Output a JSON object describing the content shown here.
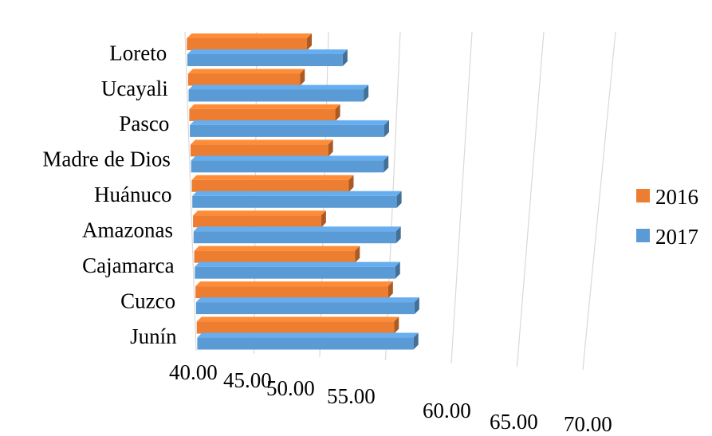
{
  "chart_data": {
    "type": "bar",
    "orientation": "horizontal",
    "style": "3d",
    "categories": [
      "Loreto",
      "Ucayali",
      "Pasco",
      "Madre de Dios",
      "Huánuco",
      "Amazonas",
      "Cajamarca",
      "Cuzco",
      "Junín"
    ],
    "series": [
      {
        "name": "2016",
        "color": "#ED7D31",
        "values": [
          48.5,
          48.0,
          50.5,
          50.0,
          51.5,
          49.5,
          52.0,
          54.5,
          55.0
        ]
      },
      {
        "name": "2017",
        "color": "#5B9BD5",
        "values": [
          51.0,
          52.5,
          54.0,
          54.0,
          55.0,
          55.0,
          55.0,
          56.5,
          56.5
        ]
      }
    ],
    "xlim": [
      40,
      70
    ],
    "xticks": [
      "40.00",
      "45.00",
      "50.00",
      "55.00",
      "60.00",
      "65.00",
      "70.00"
    ],
    "grid": true,
    "legend_position": "right",
    "title": "",
    "xlabel": "",
    "ylabel": ""
  }
}
